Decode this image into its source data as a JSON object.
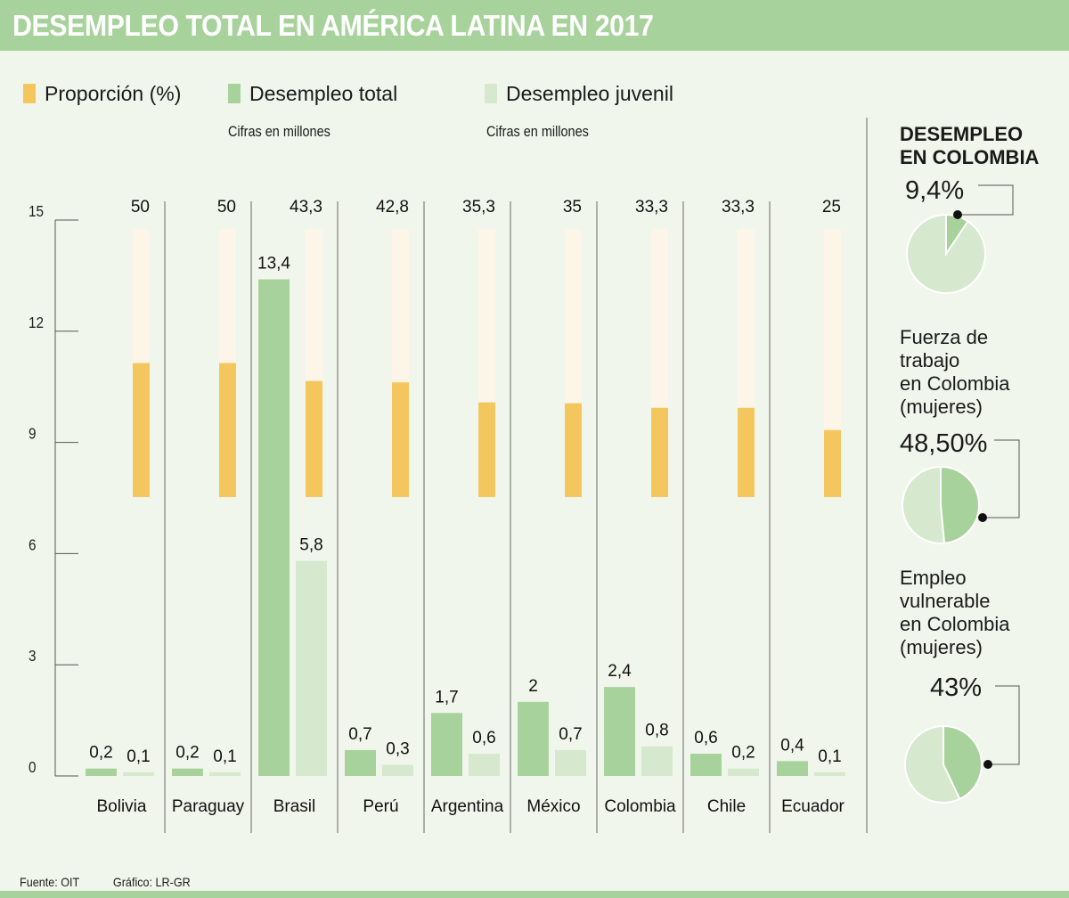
{
  "title": "DESEMPLEO TOTAL EN AMÉRICA LATINA EN 2017",
  "legend": [
    {
      "label": "Proporción (%)",
      "color": "#f4c75e"
    },
    {
      "label": "Desempleo total",
      "color": "#a8d29b"
    },
    {
      "label": "Desempleo juvenil",
      "color": "#d6e8cd"
    }
  ],
  "subtitles": {
    "total": "Cifras en millones",
    "juvenil": "Cifras en millones"
  },
  "colors": {
    "proporcion": "#f4c75e",
    "proporcion_bg": "#fdf5e8",
    "total": "#a8d29b",
    "juvenil": "#d6e8cd",
    "header": "#a8d29b",
    "background": "#f1f6ec"
  },
  "chart_data": {
    "type": "bar",
    "title": "DESEMPLEO TOTAL EN AMÉRICA LATINA EN 2017",
    "categories": [
      "Bolivia",
      "Paraguay",
      "Brasil",
      "Perú",
      "Argentina",
      "México",
      "Colombia",
      "Chile",
      "Ecuador"
    ],
    "series": [
      {
        "name": "Desempleo total",
        "unit": "millones",
        "values": [
          0.2,
          0.2,
          13.4,
          0.7,
          1.7,
          2,
          2.4,
          0.6,
          0.4
        ],
        "labels": [
          "0,2",
          "0,2",
          "13,4",
          "0,7",
          "1,7",
          "2",
          "2,4",
          "0,6",
          "0,4"
        ]
      },
      {
        "name": "Desempleo juvenil",
        "unit": "millones",
        "values": [
          0.1,
          0.1,
          5.8,
          0.3,
          0.6,
          0.7,
          0.8,
          0.2,
          0.1
        ],
        "labels": [
          "0,1",
          "0,1",
          "5,8",
          "0,3",
          "0,6",
          "0,7",
          "0,8",
          "0,2",
          "0,1"
        ]
      },
      {
        "name": "Proporción (%)",
        "unit": "%",
        "values": [
          50,
          50,
          43.3,
          42.8,
          35.3,
          35,
          33.3,
          33.3,
          25
        ],
        "labels": [
          "50",
          "50",
          "43,3",
          "42,8",
          "35,3",
          "35",
          "33,3",
          "33,3",
          "25"
        ]
      }
    ],
    "yticks": [
      "0",
      "3",
      "6",
      "9",
      "12",
      "15"
    ],
    "ytick_values": [
      0,
      3,
      6,
      9,
      12,
      15
    ],
    "ylim": [
      0,
      15
    ],
    "proporcion_range": [
      0,
      100
    ],
    "xlabel": "",
    "ylabel": "",
    "grid": false
  },
  "side": {
    "title_line1": "DESEMPLEO",
    "title_line2": "EN COLOMBIA",
    "pies": [
      {
        "label_lines": [],
        "value_label": "9,4%",
        "value": 9.4
      },
      {
        "label_lines": [
          "Fuerza de",
          "trabajo",
          "en Colombia",
          "(mujeres)"
        ],
        "value_label": "48,50%",
        "value": 48.5
      },
      {
        "label_lines": [
          "Empleo",
          "vulnerable",
          "en Colombia",
          "(mujeres)"
        ],
        "value_label": "43%",
        "value": 43
      }
    ]
  },
  "footer": {
    "source": "Fuente: OIT",
    "credit": "Gráfico: LR-GR"
  }
}
